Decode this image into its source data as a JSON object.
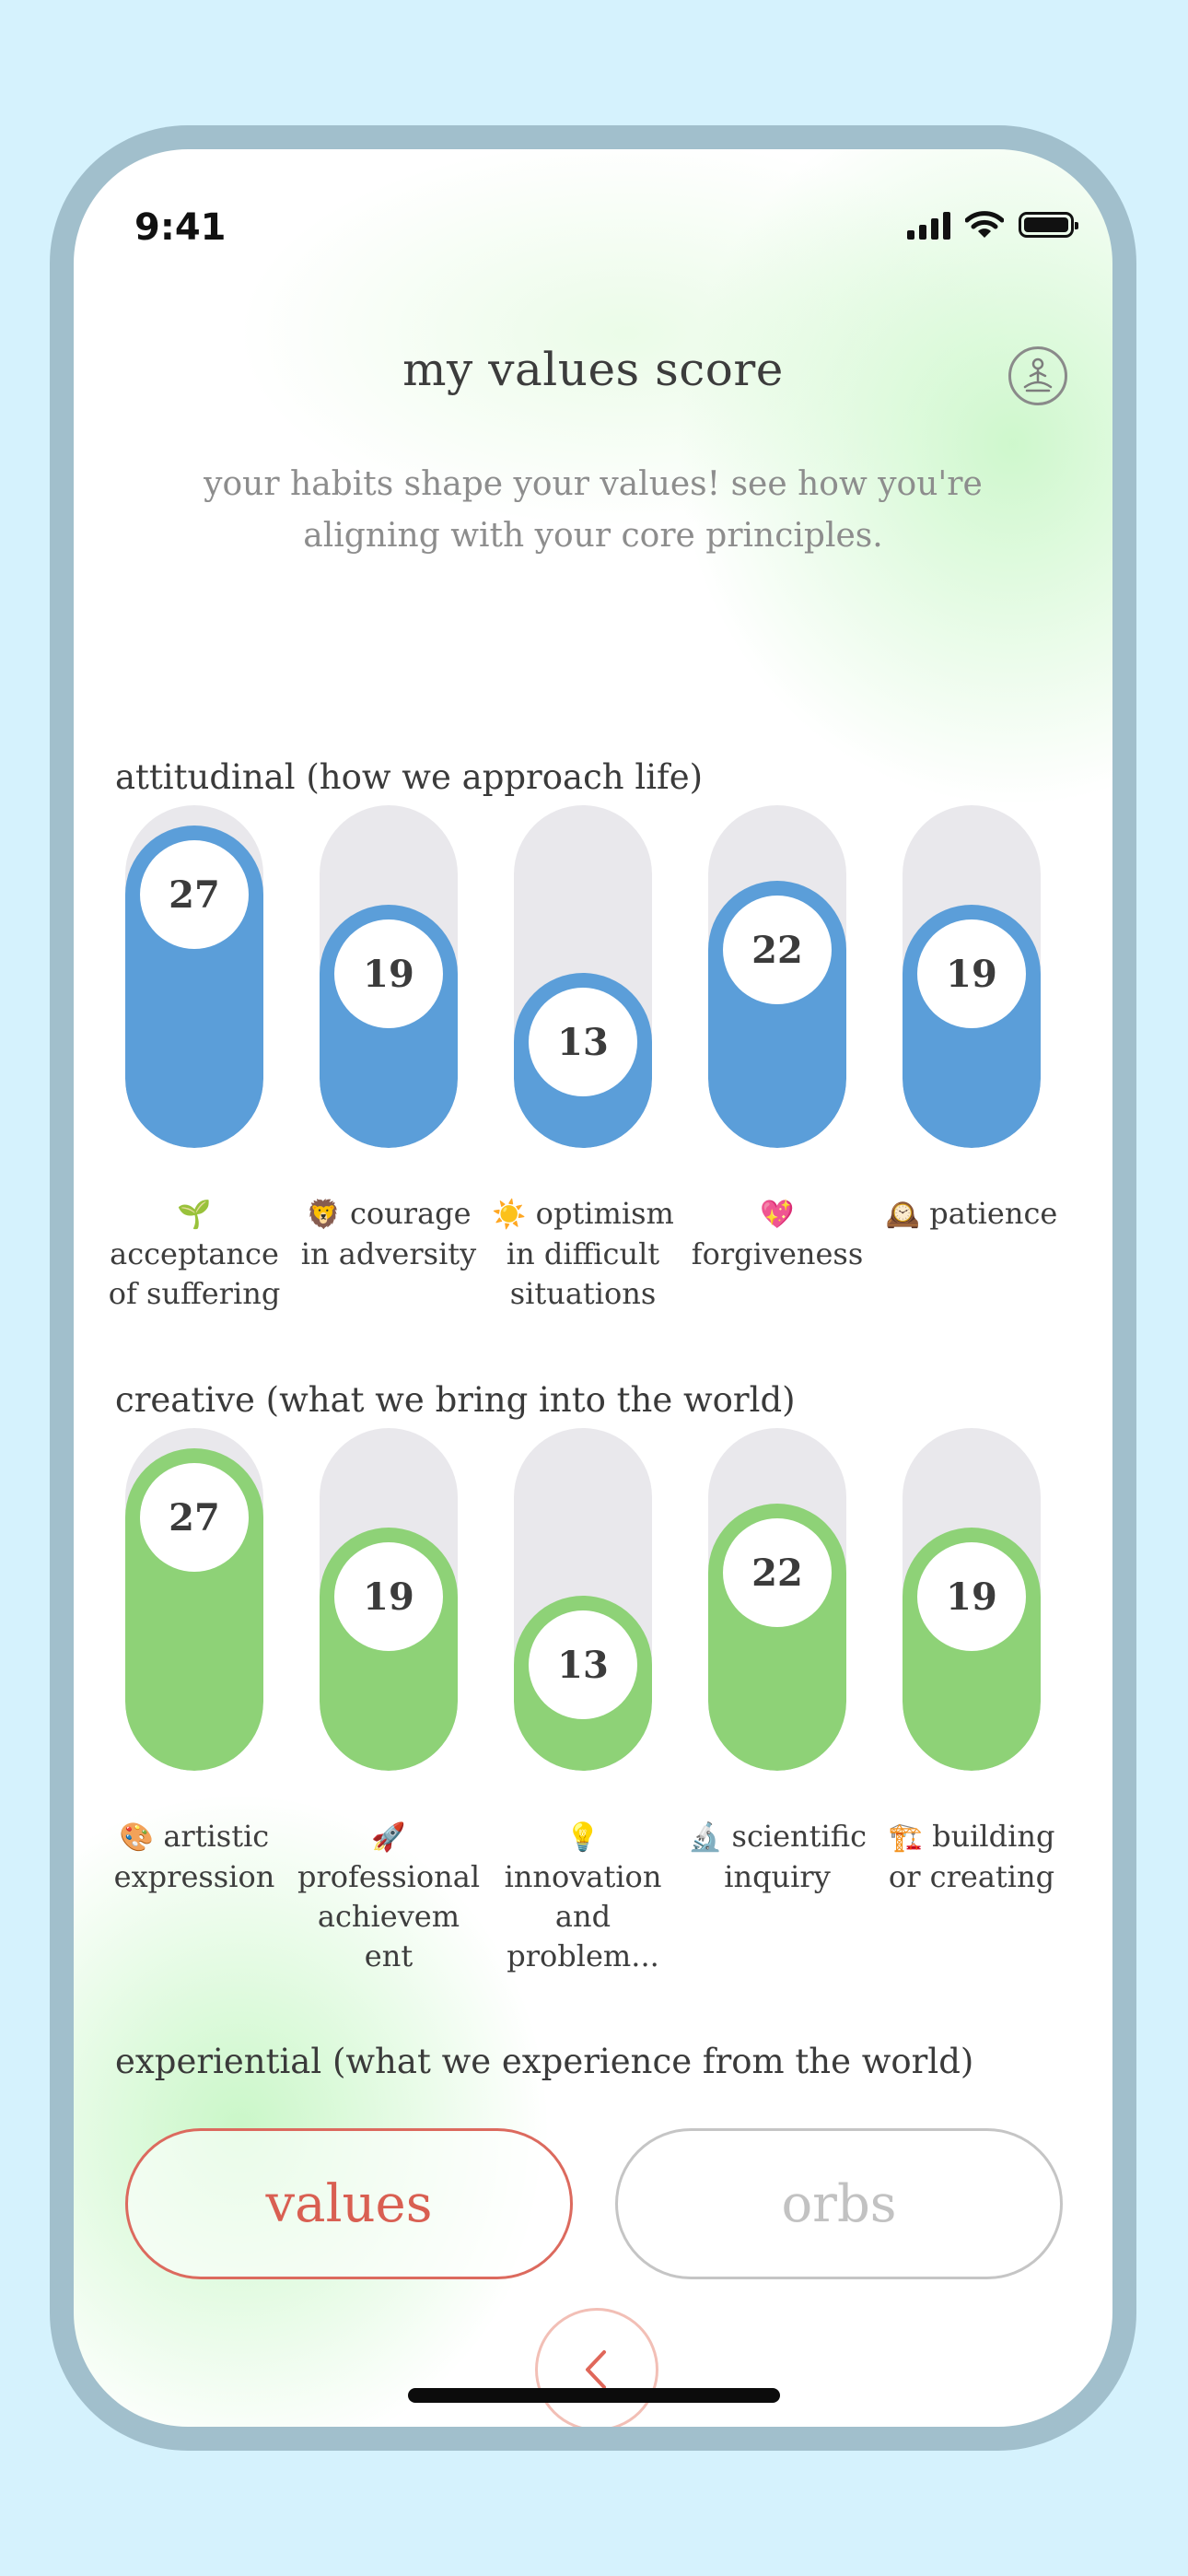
{
  "status_bar": {
    "time": "9:41"
  },
  "header": {
    "title": "my values score",
    "subtitle": "your habits shape your values! see how you're aligning with your core principles."
  },
  "sections": [
    {
      "title": "attitudinal (how we approach life)",
      "color": "#5b9ed9",
      "items": [
        {
          "score": "27",
          "level": 0.94,
          "emoji": "🌱",
          "label": "acceptance of suffering"
        },
        {
          "score": "19",
          "level": 0.71,
          "emoji": "🦁",
          "label": "courage in adversity"
        },
        {
          "score": "13",
          "level": 0.51,
          "emoji": "☀️",
          "label": "optimism in difficult situations"
        },
        {
          "score": "22",
          "level": 0.78,
          "emoji": "💖",
          "label": "forgiveness"
        },
        {
          "score": "19",
          "level": 0.71,
          "emoji": "🕰️",
          "label": "patience"
        }
      ]
    },
    {
      "title": "creative (what we bring into the world)",
      "color": "#8ed277",
      "items": [
        {
          "score": "27",
          "level": 0.94,
          "emoji": "🎨",
          "label": "artistic expression"
        },
        {
          "score": "19",
          "level": 0.71,
          "emoji": "🚀",
          "label": "professional achievem ent"
        },
        {
          "score": "13",
          "level": 0.51,
          "emoji": "💡",
          "label": "innovation and problem..."
        },
        {
          "score": "22",
          "level": 0.78,
          "emoji": "🔬",
          "label": "scientific inquiry"
        },
        {
          "score": "19",
          "level": 0.71,
          "emoji": "🏗️",
          "label": "building or creating"
        }
      ]
    },
    {
      "title": "experiential (what we experience from the world)",
      "items": []
    }
  ],
  "toggle": {
    "values_label": "values",
    "orbs_label": "orbs"
  },
  "icons": {
    "profile": "meditation-icon",
    "back": "chevron-left-icon"
  }
}
